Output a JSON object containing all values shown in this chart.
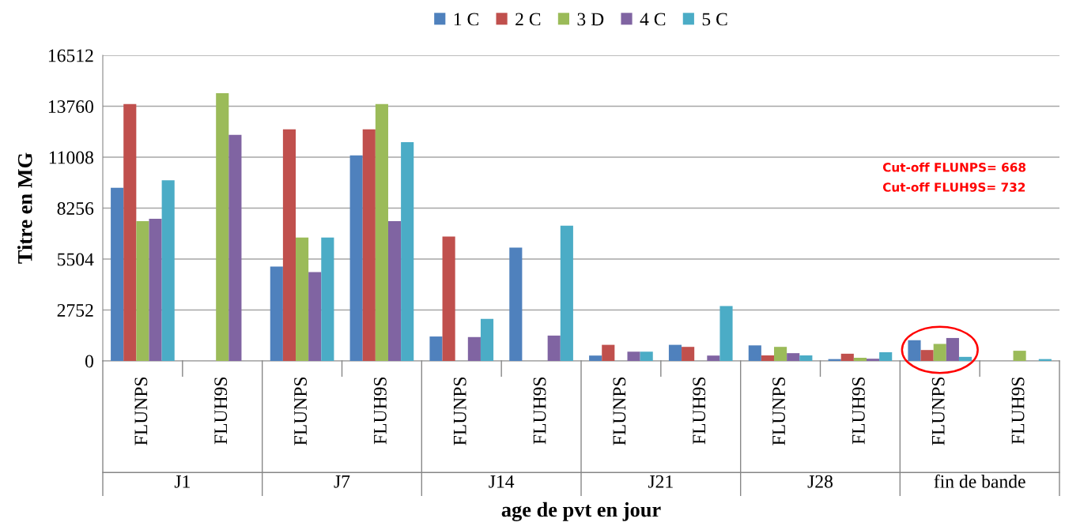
{
  "chart_data": {
    "type": "bar",
    "ylabel": "Titre en MG",
    "xlabel": "age de pvt en jour",
    "categories": [
      "FLUNPS",
      "FLUH9S",
      "FLUNPS",
      "FLUH9S",
      "FLUNPS",
      "FLUH9S",
      "FLUNPS",
      "FLUH9S",
      "FLUNPS",
      "FLUH9S",
      "FLUNPS",
      "FLUH9S"
    ],
    "series": [
      {
        "name": "1 C",
        "color": "#4f81bd",
        "values": [
          9350,
          null,
          5100,
          11100,
          1320,
          6120,
          290,
          870,
          840,
          100,
          1120,
          null
        ]
      },
      {
        "name": "2 C",
        "color": "#c0504d",
        "values": [
          13880,
          null,
          12510,
          12510,
          6720,
          null,
          870,
          760,
          300,
          390,
          590,
          null
        ]
      },
      {
        "name": "3 D",
        "color": "#9bbb59",
        "values": [
          7550,
          14460,
          6670,
          13880,
          null,
          null,
          null,
          null,
          760,
          170,
          920,
          550
        ]
      },
      {
        "name": "4 C",
        "color": "#8064a2",
        "values": [
          7680,
          12210,
          4800,
          7550,
          1290,
          1370,
          500,
          290,
          420,
          120,
          1240,
          null
        ]
      },
      {
        "name": "5 C",
        "color": "#4bacc6",
        "values": [
          9760,
          null,
          6670,
          11820,
          2270,
          7310,
          500,
          2970,
          300,
          470,
          220,
          100
        ]
      }
    ],
    "ylim": [
      0,
      16512
    ],
    "yticks": [
      0,
      2752,
      5504,
      8256,
      11008,
      13760,
      16512
    ],
    "grid": "y",
    "legend": "top",
    "annotations": [
      "J1",
      "J7",
      "J14",
      "J21",
      "J28",
      "fin de bande",
      "Cut-off FLUNPS= 668",
      "Cut-off FLUH9S= 732"
    ]
  }
}
